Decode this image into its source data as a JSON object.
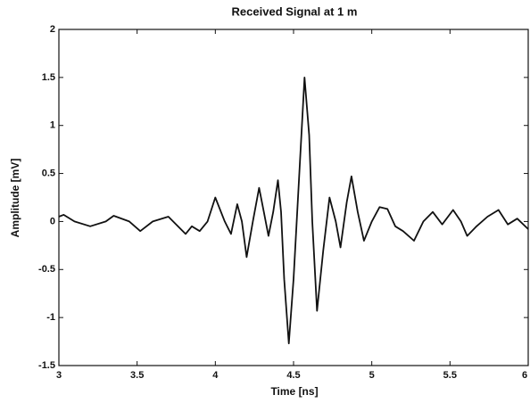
{
  "chart_data": {
    "type": "line",
    "title": "Received Signal at 1 m",
    "x_label": "Time [ns]",
    "y_label": "Amplitude [mV]",
    "x": [
      3.0,
      3.03,
      3.1,
      3.2,
      3.3,
      3.35,
      3.45,
      3.52,
      3.6,
      3.7,
      3.81,
      3.85,
      3.9,
      3.95,
      4.0,
      4.06,
      4.1,
      4.14,
      4.17,
      4.2,
      4.24,
      4.28,
      4.31,
      4.34,
      4.37,
      4.4,
      4.42,
      4.44,
      4.47,
      4.5,
      4.53,
      4.57,
      4.6,
      4.62,
      4.65,
      4.69,
      4.73,
      4.77,
      4.8,
      4.84,
      4.87,
      4.91,
      4.95,
      5.0,
      5.05,
      5.1,
      5.15,
      5.2,
      5.27,
      5.33,
      5.39,
      5.45,
      5.52,
      5.57,
      5.61,
      5.67,
      5.74,
      5.81,
      5.87,
      5.93,
      6.0
    ],
    "series": [
      {
        "color": "#111111",
        "values": [
          0.05,
          0.07,
          0.0,
          -0.05,
          0.0,
          0.06,
          0.0,
          -0.1,
          0.0,
          0.05,
          -0.13,
          -0.05,
          -0.1,
          0.0,
          0.25,
          0.0,
          -0.13,
          0.18,
          0.0,
          -0.37,
          0.0,
          0.35,
          0.1,
          -0.15,
          0.1,
          0.43,
          0.1,
          -0.6,
          -1.27,
          -0.6,
          0.3,
          1.5,
          0.9,
          0.0,
          -0.93,
          -0.3,
          0.25,
          0.0,
          -0.27,
          0.2,
          0.47,
          0.1,
          -0.2,
          0.0,
          0.15,
          0.13,
          -0.05,
          -0.1,
          -0.2,
          0.0,
          0.1,
          -0.03,
          0.12,
          0.0,
          -0.15,
          -0.05,
          0.05,
          0.12,
          -0.03,
          0.03,
          -0.08
        ]
      }
    ],
    "xlim": [
      3,
      6
    ],
    "ylim": [
      -1.5,
      2
    ],
    "xticks": [
      3,
      3.5,
      4,
      4.5,
      5,
      5.5,
      6
    ],
    "yticks": [
      -1.5,
      -1,
      -0.5,
      0,
      0.5,
      1,
      1.5,
      2
    ],
    "grid": false
  }
}
